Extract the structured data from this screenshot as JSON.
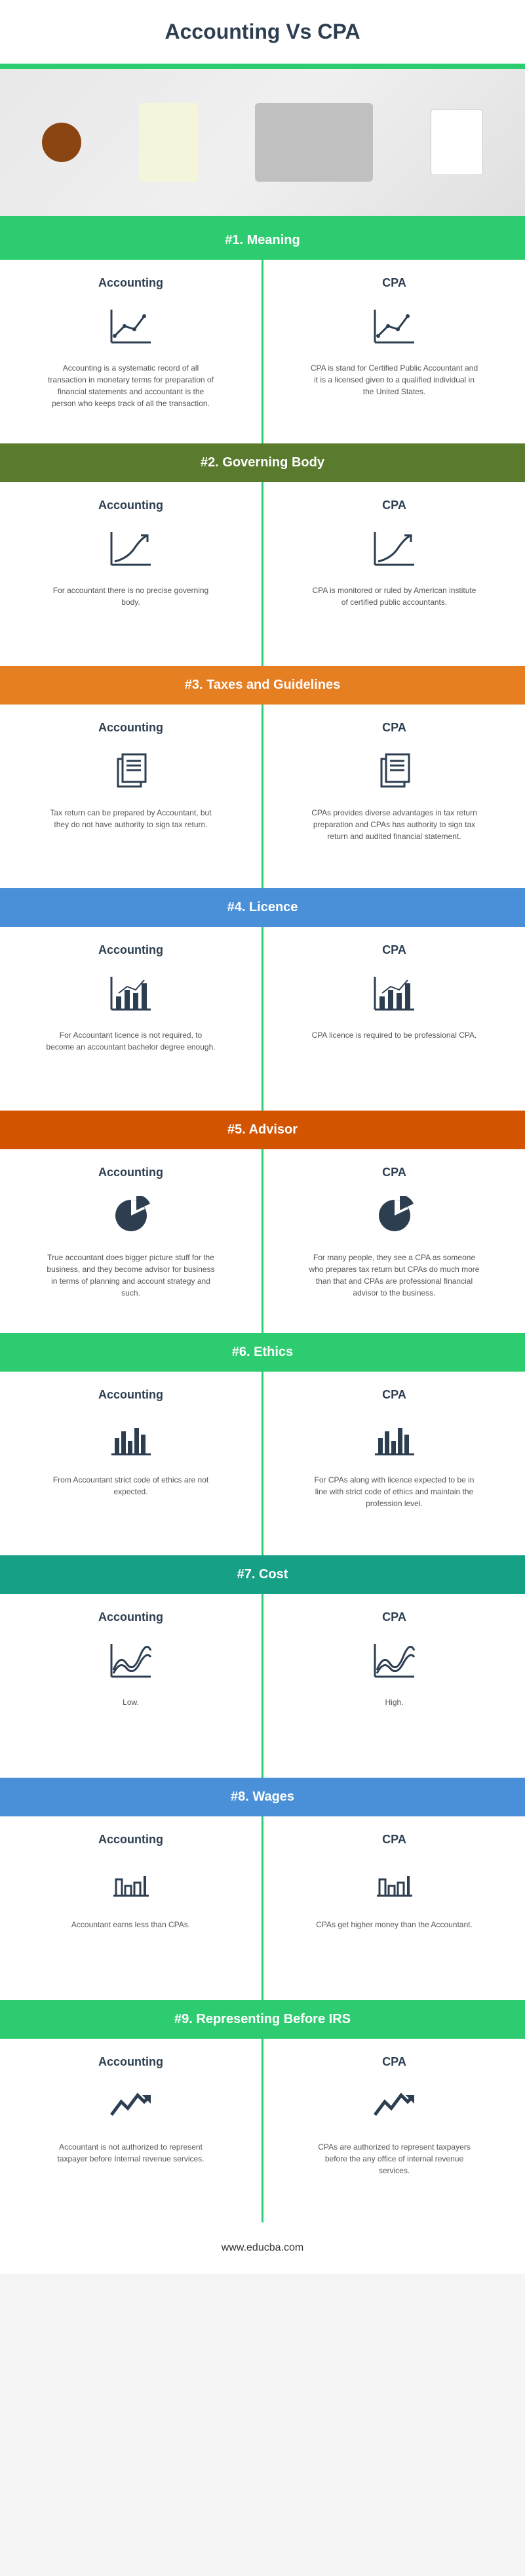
{
  "title": "Accounting Vs CPA",
  "footer_text": "www.educba.com",
  "colors": {
    "green": "#2ecc71",
    "dark_green": "#5a7a2e",
    "orange": "#e67e22",
    "blue": "#4a90d9",
    "dark_orange": "#d35400",
    "teal": "#16a085",
    "text_dark": "#2c3e50",
    "text_gray": "#555555"
  },
  "sections": [
    {
      "header": "#1. Meaning",
      "header_color": "#2ecc71",
      "icon": "line-chart",
      "accounting": {
        "title": "Accounting",
        "text": "Accounting is a systematic record of all transaction in monetary terms for preparation of financial statements and accountant is the person who keeps track of all the transaction."
      },
      "cpa": {
        "title": "CPA",
        "text": "CPA is stand for Certified Public Accountant and it is a licensed given to a qualified individual in the United States."
      }
    },
    {
      "header": "#2. Governing Body",
      "header_color": "#5a7a2e",
      "icon": "growth-chart",
      "accounting": {
        "title": "Accounting",
        "text": "For accountant there is no precise governing body."
      },
      "cpa": {
        "title": "CPA",
        "text": "CPA is monitored or ruled by American institute of certified public accountants."
      }
    },
    {
      "header": "#3. Taxes and Guidelines",
      "header_color": "#e67e22",
      "icon": "documents",
      "accounting": {
        "title": "Accounting",
        "text": "Tax return can be prepared by Accountant, but they do not have authority to sign tax return."
      },
      "cpa": {
        "title": "CPA",
        "text": "CPAs provides diverse advantages in tax return preparation and CPAs has authority to sign tax return and audited financial statement."
      }
    },
    {
      "header": "#4. Licence",
      "header_color": "#4a90d9",
      "icon": "bar-line-chart",
      "accounting": {
        "title": "Accounting",
        "text": "For Accountant licence is not required, to become an accountant bachelor degree enough."
      },
      "cpa": {
        "title": "CPA",
        "text": "CPA licence is required to be professional CPA."
      }
    },
    {
      "header": "#5. Advisor",
      "header_color": "#d35400",
      "icon": "pie-chart",
      "accounting": {
        "title": "Accounting",
        "text": "True accountant does bigger picture stuff for the business, and they become advisor for business in terms of planning and account strategy and such."
      },
      "cpa": {
        "title": "CPA",
        "text": "For many people, they see a CPA as someone who prepares tax return but CPAs do much more than that and CPAs are professional financial advisor to the business."
      }
    },
    {
      "header": "#6. Ethics",
      "header_color": "#2ecc71",
      "icon": "bar-chart",
      "accounting": {
        "title": "Accounting",
        "text": "From Accountant strict code of ethics are not expected."
      },
      "cpa": {
        "title": "CPA",
        "text": "For CPAs along with licence expected to be in line with strict code of ethics and maintain the profession level."
      }
    },
    {
      "header": "#7. Cost",
      "header_color": "#16a085",
      "icon": "wave-chart",
      "accounting": {
        "title": "Accounting",
        "text": "Low."
      },
      "cpa": {
        "title": "CPA",
        "text": "High."
      }
    },
    {
      "header": "#8. Wages",
      "header_color": "#4a90d9",
      "icon": "small-bars",
      "accounting": {
        "title": "Accounting",
        "text": "Accountant earns less than CPAs."
      },
      "cpa": {
        "title": "CPA",
        "text": "CPAs get higher money than the Accountant."
      }
    },
    {
      "header": "#9. Representing Before IRS",
      "header_color": "#2ecc71",
      "icon": "zigzag-arrow",
      "accounting": {
        "title": "Accounting",
        "text": "Accountant is not authorized to represent taxpayer before Internal revenue services."
      },
      "cpa": {
        "title": "CPA",
        "text": "CPAs are authorized to represent taxpayers before the any office of internal revenue services."
      }
    }
  ]
}
